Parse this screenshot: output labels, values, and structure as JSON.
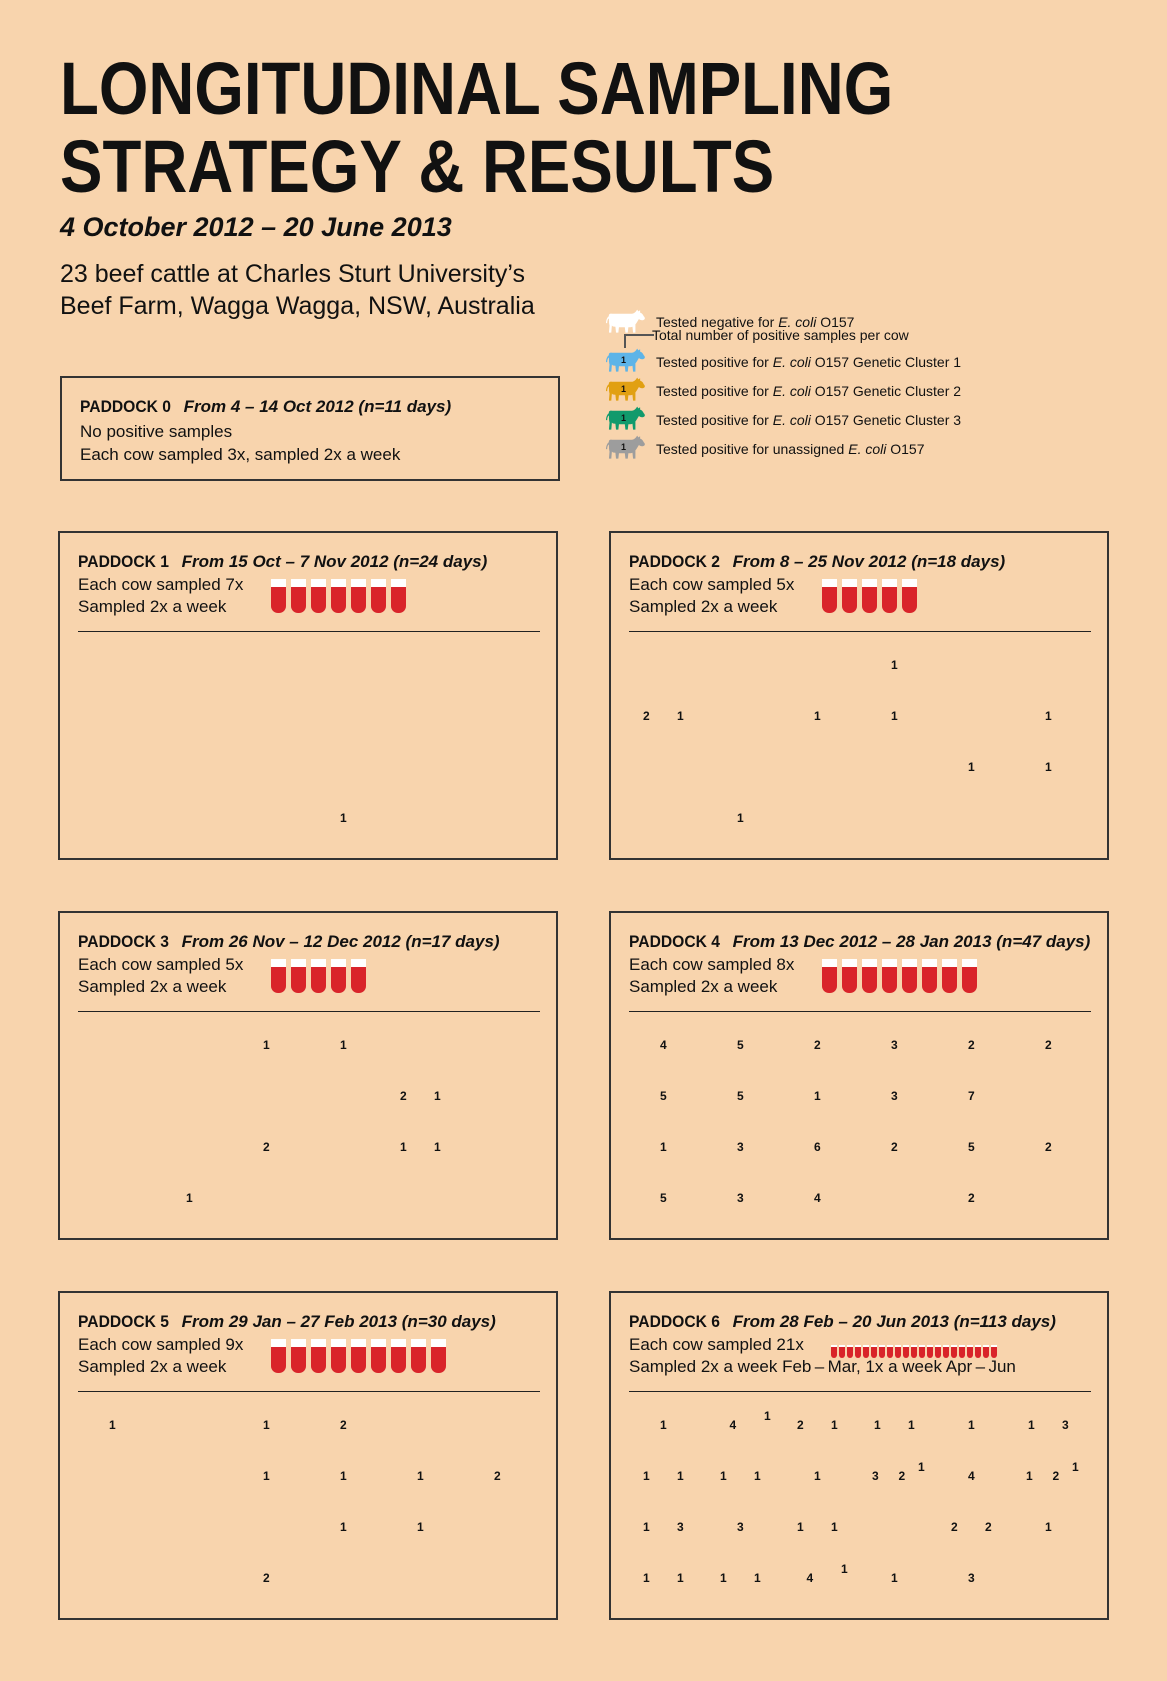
{
  "title": [
    "LONGITUDINAL SAMPLING",
    "STRATEGY & RESULTS"
  ],
  "subtitle": "4 October 2012 – 20 June 2013",
  "description": [
    "23 beef cattle at Charles Sturt University’s",
    "Beef Farm, Wagga Wagga, NSW, Australia"
  ],
  "colors": {
    "white": "#ffffff",
    "cluster1": "#5db4e8",
    "cluster2": "#e1a012",
    "cluster3": "#119a6c",
    "unassigned": "#9d9d9d",
    "tube": "#d9242a",
    "background": "#f8d4ad"
  },
  "legend": {
    "negative": {
      "pre": "Tested negative for ",
      "em": "E. coli",
      "post": " O157"
    },
    "total": "Total number of positive samples per cow",
    "cluster1": {
      "pre": "Tested positive for ",
      "em": "E. coli",
      "post": " O157 Genetic Cluster 1"
    },
    "cluster2": {
      "pre": "Tested positive for ",
      "em": "E. coli",
      "post": " O157 Genetic Cluster 2"
    },
    "cluster3": {
      "pre": "Tested positive for ",
      "em": "E. coli",
      "post": " O157 Genetic Cluster 3"
    },
    "unassigned": {
      "pre": "Tested positive for unassigned ",
      "em": "E. coli",
      "post": " O157"
    },
    "sample_count": "1"
  },
  "paddock0": {
    "name": "PADDOCK 0",
    "range": "From 4 – 14 Oct 2012 (n=11 days)",
    "line1": "No positive samples",
    "line2": "Each cow sampled 3x, sampled 2x a week"
  },
  "paddocks": [
    {
      "name": "PADDOCK 1",
      "range": "From 15 Oct – 7 Nov 2012 (n=24 days)",
      "line1": "Each cow sampled 7x",
      "line2": "Sampled 2x a week",
      "tubes": 7,
      "cows": [
        [
          "w"
        ],
        [
          "w"
        ],
        [
          "w"
        ],
        [
          "w"
        ],
        [
          "w"
        ],
        [
          "w"
        ],
        [
          "w"
        ],
        [
          "w"
        ],
        [
          "w"
        ],
        [
          "w"
        ],
        [
          "w"
        ],
        [
          "w"
        ],
        [
          "w"
        ],
        [
          "w"
        ],
        [
          "w"
        ],
        [
          "w"
        ],
        [
          "w"
        ],
        [
          "w"
        ],
        [
          "w"
        ],
        [
          "w"
        ],
        [
          "w"
        ],
        [
          [
            "u",
            "1"
          ]
        ],
        [
          "w"
        ]
      ]
    },
    {
      "name": "PADDOCK 2",
      "range": "From 8 – 25 Nov 2012 (n=18 days)",
      "line1": "Each cow sampled 5x",
      "line2": "Sampled 2x a week",
      "tubes": 5,
      "cows": [
        [
          "w"
        ],
        [
          "w"
        ],
        [
          "w"
        ],
        [
          [
            "c2",
            "1"
          ]
        ],
        [
          "w"
        ],
        [
          "w"
        ],
        [
          [
            "c2",
            "2"
          ],
          [
            "c1",
            "1"
          ]
        ],
        [
          "w"
        ],
        [
          [
            "c2",
            "1"
          ]
        ],
        [
          [
            "c2",
            "1"
          ]
        ],
        [
          "w"
        ],
        [
          [
            "c1",
            "1"
          ]
        ],
        [
          "w"
        ],
        [
          "w"
        ],
        [
          "w"
        ],
        [
          "w"
        ],
        [
          [
            "c2",
            "1"
          ]
        ],
        [
          [
            "c2",
            "1"
          ]
        ],
        [
          "w"
        ],
        [
          [
            "c1",
            "1"
          ]
        ],
        [
          "w"
        ],
        [
          "w"
        ],
        [
          "w"
        ]
      ]
    },
    {
      "name": "PADDOCK 3",
      "range": "From 26 Nov – 12 Dec 2012 (n=17 days)",
      "line1": "Each cow sampled 5x",
      "line2": "Sampled 2x a week",
      "tubes": 5,
      "cows": [
        [
          "w"
        ],
        [
          "w"
        ],
        [
          [
            "c2",
            "1"
          ]
        ],
        [
          [
            "c2",
            "1"
          ]
        ],
        [
          "w"
        ],
        [
          "w"
        ],
        [
          "w"
        ],
        [
          "w"
        ],
        [
          "w"
        ],
        [
          "w"
        ],
        [
          [
            "c2",
            "2"
          ],
          [
            "c1",
            "1"
          ]
        ],
        [
          "w"
        ],
        [
          "w"
        ],
        [
          "w"
        ],
        [
          [
            "c1",
            "2"
          ]
        ],
        [
          "w"
        ],
        [
          [
            "c2",
            "1"
          ],
          [
            "c1",
            "1"
          ]
        ],
        [
          "w"
        ],
        [
          "w"
        ],
        [
          [
            "c2",
            "1"
          ]
        ],
        [
          "w"
        ],
        [
          "w"
        ],
        [
          "w"
        ]
      ]
    },
    {
      "name": "PADDOCK 4",
      "range": "From 13 Dec 2012 – 28 Jan 2013 (n=47 days)",
      "line1": "Each cow sampled 8x",
      "line2": "Sampled 2x a week",
      "tubes": 8,
      "cows": [
        [
          [
            "c1",
            "4"
          ]
        ],
        [
          [
            "c1",
            "5"
          ]
        ],
        [
          [
            "c1",
            "2"
          ]
        ],
        [
          [
            "c1",
            "3"
          ]
        ],
        [
          [
            "c1",
            "2"
          ]
        ],
        [
          [
            "c1",
            "2"
          ]
        ],
        [
          [
            "c1",
            "5"
          ]
        ],
        [
          [
            "c1",
            "5"
          ]
        ],
        [
          [
            "c1",
            "1"
          ]
        ],
        [
          [
            "c1",
            "3"
          ]
        ],
        [
          [
            "c1",
            "7"
          ]
        ],
        [
          "w"
        ],
        [
          [
            "c1",
            "1"
          ]
        ],
        [
          [
            "c1",
            "3"
          ]
        ],
        [
          [
            "c1",
            "6"
          ]
        ],
        [
          [
            "c1",
            "2"
          ]
        ],
        [
          [
            "c1",
            "5"
          ]
        ],
        [
          [
            "c1",
            "2"
          ]
        ],
        [
          [
            "c1",
            "5"
          ]
        ],
        [
          [
            "c1",
            "3"
          ]
        ],
        [
          [
            "c1",
            "4"
          ]
        ],
        [
          "w"
        ],
        [
          [
            "c1",
            "2"
          ]
        ]
      ]
    },
    {
      "name": "PADDOCK 5",
      "range": "From 29 Jan – 27 Feb 2013 (n=30 days)",
      "line1": "Each cow sampled 9x",
      "line2": "Sampled 2x a week",
      "tubes": 9,
      "cows": [
        [
          [
            "c1",
            "1"
          ]
        ],
        [
          "w"
        ],
        [
          [
            "c1",
            "1"
          ]
        ],
        [
          [
            "c1",
            "2"
          ]
        ],
        [
          "w"
        ],
        [
          "w"
        ],
        [
          "w"
        ],
        [
          "w"
        ],
        [
          [
            "c1",
            "1"
          ]
        ],
        [
          [
            "c1",
            "1"
          ]
        ],
        [
          [
            "c1",
            "1"
          ]
        ],
        [
          [
            "c1",
            "2"
          ]
        ],
        [
          "w"
        ],
        [
          "w"
        ],
        [
          "w"
        ],
        [
          [
            "c1",
            "1"
          ]
        ],
        [
          [
            "c1",
            "1"
          ]
        ],
        [
          "w"
        ],
        [
          "w"
        ],
        [
          "w"
        ],
        [
          [
            "c1",
            "2"
          ]
        ],
        [
          "w"
        ],
        [
          "w"
        ]
      ]
    },
    {
      "name": "PADDOCK 6",
      "range": "From 28 Feb – 20 Jun 2013 (n=113 days)",
      "line1": "Each cow sampled 21x",
      "line2": "Sampled 2x a week Feb – Mar, 1x a week Apr – Jun",
      "tubes": 21,
      "cows": [
        [
          [
            "c3",
            "1"
          ]
        ],
        [
          [
            "c3",
            "4"
          ],
          [
            "u",
            "1"
          ]
        ],
        [
          [
            "c1",
            "2"
          ],
          [
            "c3",
            "1"
          ]
        ],
        [
          [
            "c1",
            "1"
          ],
          [
            "c3",
            "1"
          ]
        ],
        [
          [
            "c3",
            "1"
          ]
        ],
        [
          [
            "c1",
            "1"
          ],
          [
            "c3",
            "3"
          ]
        ],
        [
          [
            "c1",
            "1"
          ],
          [
            "c3",
            "1"
          ]
        ],
        [
          [
            "c1",
            "1"
          ],
          [
            "c3",
            "1"
          ]
        ],
        [
          [
            "c3",
            "1"
          ]
        ],
        [
          [
            "c1",
            "3"
          ],
          [
            "c3",
            "2"
          ],
          [
            "u",
            "1"
          ]
        ],
        [
          [
            "c1",
            "4"
          ]
        ],
        [
          [
            "c1",
            "1"
          ],
          [
            "c3",
            "2"
          ],
          [
            "u",
            "1"
          ]
        ],
        [
          [
            "c1",
            "1"
          ],
          [
            "c3",
            "3"
          ]
        ],
        [
          [
            "c3",
            "3"
          ]
        ],
        [
          [
            "c1",
            "1"
          ],
          [
            "c3",
            "1"
          ]
        ],
        [
          "w"
        ],
        [
          [
            "c1",
            "2"
          ],
          [
            "c3",
            "2"
          ]
        ],
        [
          [
            "c2",
            "1"
          ]
        ],
        [
          [
            "c1",
            "1"
          ],
          [
            "c3",
            "1"
          ]
        ],
        [
          [
            "c1",
            "1"
          ],
          [
            "c3",
            "1"
          ]
        ],
        [
          [
            "c3",
            "4"
          ],
          [
            "u",
            "1"
          ]
        ],
        [
          [
            "c3",
            "1"
          ]
        ],
        [
          [
            "c3",
            "3"
          ]
        ]
      ]
    }
  ]
}
